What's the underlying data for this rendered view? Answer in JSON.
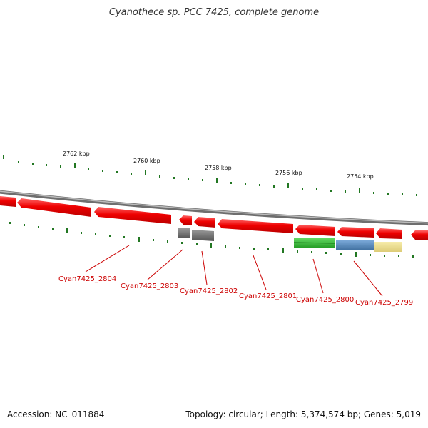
{
  "title": "Cyanothece sp. PCC 7425, complete genome",
  "footer": {
    "accession": "Accession: NC_011884",
    "summary": "Topology: circular; Length: 5,374,574 bp; Genes: 5,019"
  },
  "ticks": {
    "labels": [
      "2762 kbp",
      "2760 kbp",
      "2758 kbp",
      "2756 kbp",
      "2754 kbp"
    ]
  },
  "genes": {
    "labels": [
      "Cyan7425_2804",
      "Cyan7425_2803",
      "Cyan7425_2802",
      "Cyan7425_2801",
      "Cyan7425_2800",
      "Cyan7425_2799"
    ]
  },
  "colors": {
    "gene_forward": "#ee0000",
    "gene_rna": "#707070",
    "feature_green": "#33bb33",
    "feature_blue": "#5588bb",
    "feature_yellow": "#eedd88",
    "tick": "#227722",
    "backbone": "#888888"
  }
}
